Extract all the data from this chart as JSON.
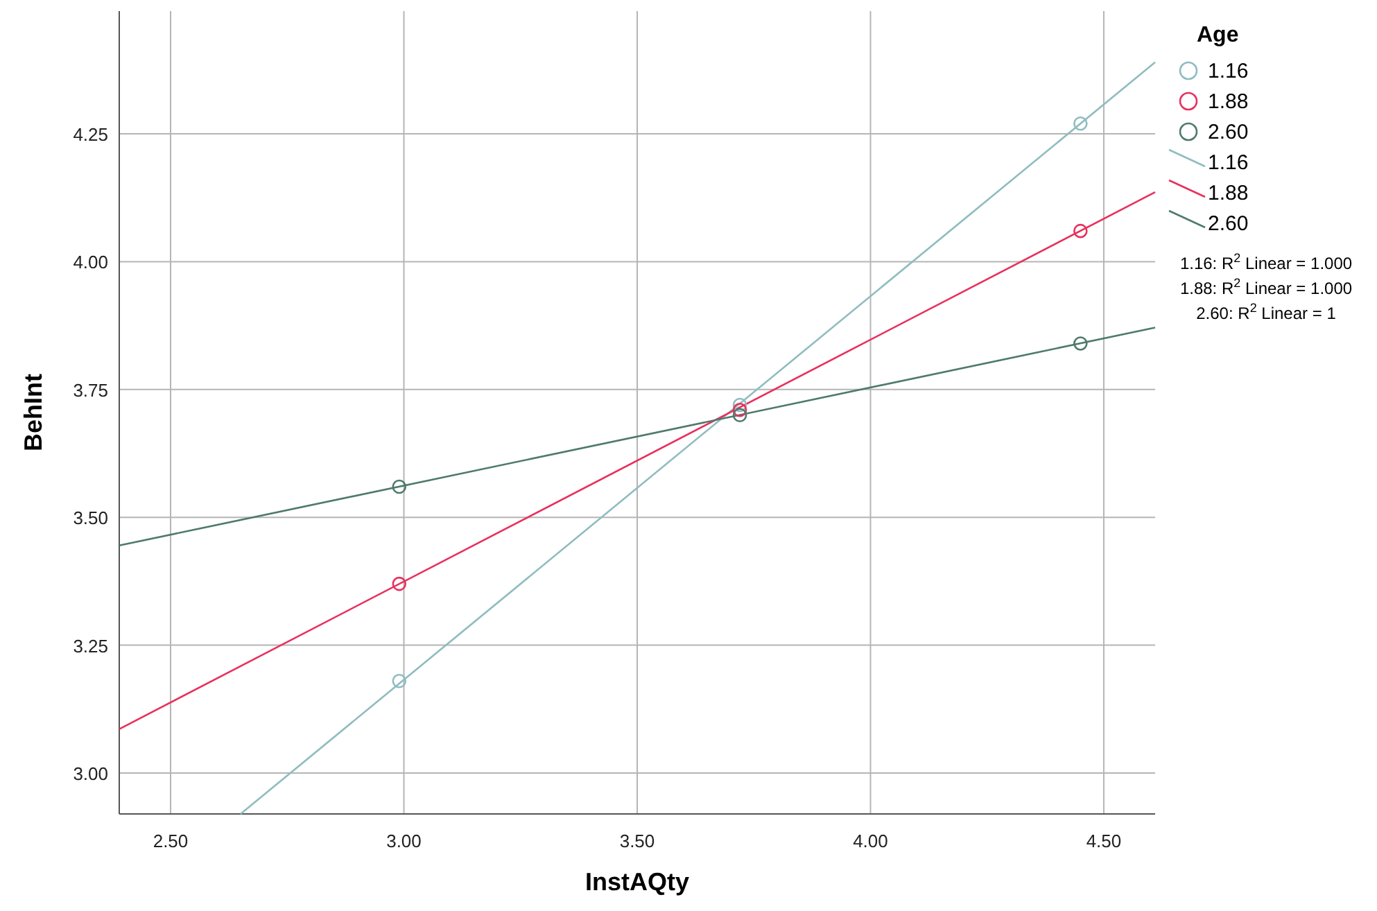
{
  "chart_data": {
    "type": "scatter",
    "xlabel": "InstAQty",
    "ylabel": "BehInt",
    "legend_title": "Age",
    "legend": "right",
    "grid": true,
    "marker": "circle",
    "xlim": [
      2.39,
      4.61
    ],
    "xticks": [
      {
        "value": 2.5,
        "label": "2.50"
      },
      {
        "value": 3,
        "label": "3.00"
      },
      {
        "value": 3.5,
        "label": "3.50"
      },
      {
        "value": 4,
        "label": "4.00"
      },
      {
        "value": 4.5,
        "label": "4.50"
      }
    ],
    "ylim": [
      2.92,
      4.49
    ],
    "yticks": [
      {
        "value": 3,
        "label": "3.00"
      },
      {
        "value": 3.25,
        "label": "3.25"
      },
      {
        "value": 3.5,
        "label": "3.50"
      },
      {
        "value": 3.75,
        "label": "3.75"
      },
      {
        "value": 4,
        "label": "4.00"
      },
      {
        "value": 4.25,
        "label": "4.25"
      }
    ],
    "series": [
      {
        "name": "1.16",
        "color": "#8fbcc0",
        "x": [
          2.99,
          3.72,
          4.45
        ],
        "values": [
          3.18,
          3.72,
          4.27
        ]
      },
      {
        "name": "1.88",
        "color": "#e8305e",
        "x": [
          2.99,
          3.72,
          4.45
        ],
        "values": [
          3.37,
          3.71,
          4.06
        ]
      },
      {
        "name": "2.60",
        "color": "#4e7a6c",
        "x": [
          2.99,
          3.72,
          4.45
        ],
        "values": [
          3.56,
          3.7,
          3.84
        ]
      },
      {
        "name": "1.16",
        "type": "line",
        "marker": "none",
        "color": "#8fbcc0",
        "x": [
          2.65,
          4.61
        ],
        "values": [
          2.92,
          4.39
        ]
      },
      {
        "name": "1.88",
        "type": "line",
        "marker": "none",
        "color": "#e8305e",
        "x": [
          2.39,
          4.61
        ],
        "values": [
          3.086,
          4.136
        ]
      },
      {
        "name": "2.60",
        "type": "line",
        "marker": "none",
        "color": "#4e7a6c",
        "x": [
          2.39,
          4.61
        ],
        "values": [
          3.445,
          3.871
        ]
      }
    ],
    "annotations": [
      "1.16: R$^{2}$ Linear = 1.000",
      "1.88: R$^{2}$ Linear = 1.000",
      "2.60: R$^{2}$ Linear = 1"
    ]
  }
}
